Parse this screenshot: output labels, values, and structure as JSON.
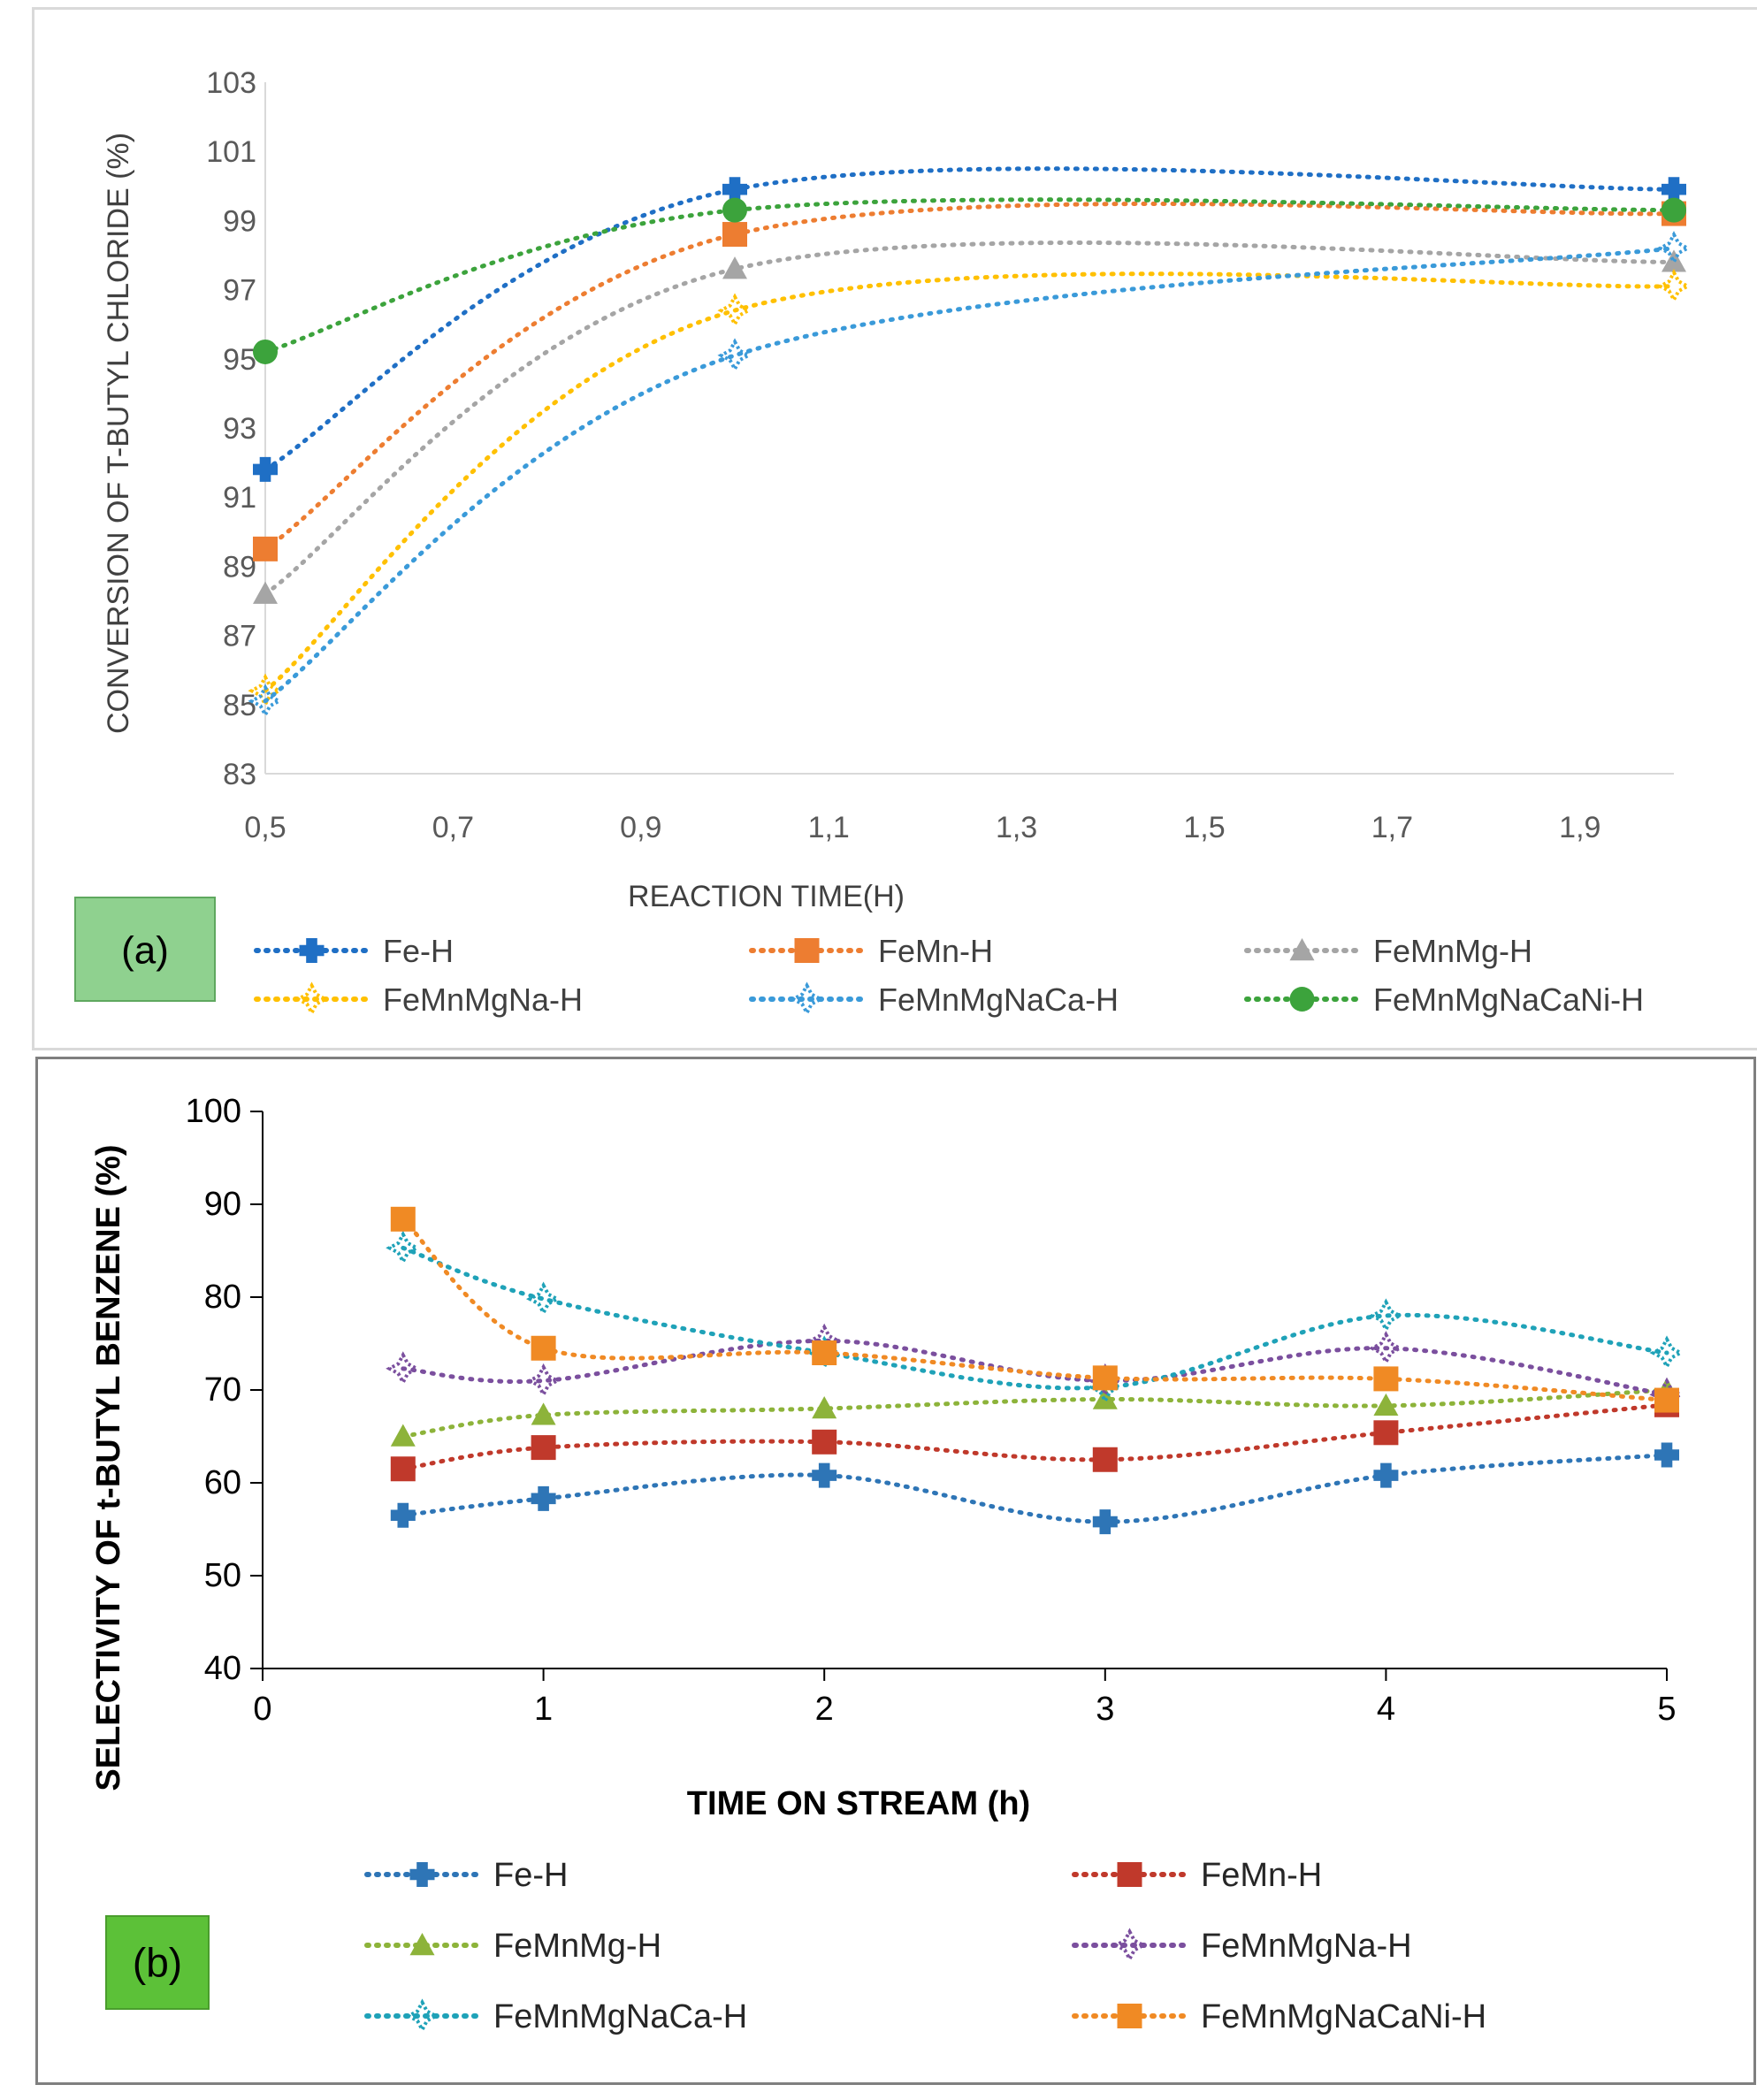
{
  "chart_data": [
    {
      "type": "line",
      "panel_label": "(a)",
      "title": "",
      "xlabel": "REACTION TIME(H)",
      "ylabel": "CONVERSION OF T-BUTYL CHLORIDE (%)",
      "xlim": [
        0.5,
        2.0
      ],
      "ylim": [
        83,
        103
      ],
      "x_ticks": [
        "0,5",
        "0,7",
        "0,9",
        "1,1",
        "1,3",
        "1,5",
        "1,7",
        "1,9"
      ],
      "x_tick_values": [
        0.5,
        0.7,
        0.9,
        1.1,
        1.3,
        1.5,
        1.7,
        1.9
      ],
      "y_ticks": [
        "83",
        "85",
        "87",
        "89",
        "91",
        "93",
        "95",
        "97",
        "99",
        "101",
        "103"
      ],
      "y_tick_values": [
        83,
        85,
        87,
        89,
        91,
        93,
        95,
        97,
        99,
        101,
        103
      ],
      "grid": false,
      "legend_position": "bottom",
      "x": [
        0.5,
        1.0,
        2.0
      ],
      "series": [
        {
          "name": "Fe-H",
          "color": "#1f6fc5",
          "marker": "cross",
          "values": [
            91.8,
            99.9,
            99.9
          ]
        },
        {
          "name": "FeMn-H",
          "color": "#ed7d31",
          "marker": "square",
          "values": [
            89.5,
            98.6,
            99.2
          ]
        },
        {
          "name": "FeMnMg-H",
          "color": "#a5a5a5",
          "marker": "triangle",
          "values": [
            88.2,
            97.6,
            97.8
          ]
        },
        {
          "name": "FeMnMgNa-H",
          "color": "#ffc000",
          "marker": "star",
          "values": [
            85.4,
            96.4,
            97.1
          ]
        },
        {
          "name": "FeMnMgNaCa-H",
          "color": "#3a9ad9",
          "marker": "star",
          "values": [
            85.1,
            95.1,
            98.2
          ]
        },
        {
          "name": "FeMnMgNaCaNi-H",
          "color": "#3ca33c",
          "marker": "circle",
          "values": [
            95.2,
            99.3,
            99.3
          ]
        }
      ]
    },
    {
      "type": "line",
      "panel_label": "(b)",
      "title": "",
      "xlabel": "TIME ON STREAM (h)",
      "ylabel": "SELECTIVITY OF t-BUTYL BENZENE (%)",
      "xlim": [
        0,
        5
      ],
      "ylim": [
        40,
        100
      ],
      "x_ticks": [
        "0",
        "1",
        "2",
        "3",
        "4",
        "5"
      ],
      "x_tick_values": [
        0,
        1,
        2,
        3,
        4,
        5
      ],
      "y_ticks": [
        "40",
        "50",
        "60",
        "70",
        "80",
        "90",
        "100"
      ],
      "y_tick_values": [
        40,
        50,
        60,
        70,
        80,
        90,
        100
      ],
      "grid": false,
      "legend_position": "bottom",
      "x": [
        0.5,
        1,
        2,
        3,
        4,
        5
      ],
      "series": [
        {
          "name": "Fe-H",
          "color": "#2e75b6",
          "marker": "cross",
          "values": [
            56.5,
            58.3,
            60.8,
            55.8,
            60.8,
            63.0
          ]
        },
        {
          "name": "FeMn-H",
          "color": "#c0392b",
          "marker": "square",
          "values": [
            61.5,
            63.8,
            64.4,
            62.5,
            65.4,
            68.4
          ]
        },
        {
          "name": "FeMnMg-H",
          "color": "#8db33a",
          "marker": "triangle",
          "values": [
            65.0,
            67.3,
            68.0,
            69.0,
            68.3,
            70.0
          ]
        },
        {
          "name": "FeMnMgNa-H",
          "color": "#7b4f9e",
          "marker": "star",
          "values": [
            72.3,
            71.0,
            75.3,
            71.0,
            74.5,
            69.5
          ]
        },
        {
          "name": "FeMnMgNaCa-H",
          "color": "#1fa2b8",
          "marker": "star",
          "values": [
            85.3,
            79.8,
            74.0,
            70.3,
            78.0,
            74.0
          ]
        },
        {
          "name": "FeMnMgNaCaNi-H",
          "color": "#f08a24",
          "marker": "square",
          "values": [
            88.4,
            74.5,
            74.0,
            71.3,
            71.2,
            68.9
          ]
        }
      ]
    }
  ]
}
